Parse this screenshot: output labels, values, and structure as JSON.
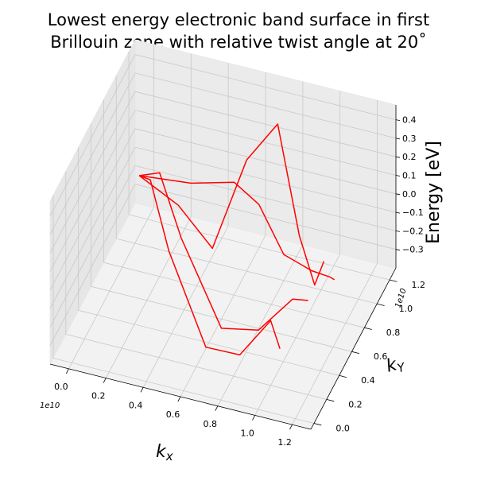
{
  "chart_data": {
    "type": "surface-3d-wireframe",
    "title_lines": [
      "Lowest energy electronic band surface in first",
      "Brillouin zone with relative twist angle at 20˚"
    ],
    "xlabel": "k_x",
    "ylabel": "k_Y",
    "zlabel": "Energy [eV]",
    "x_multiplier": "1e10",
    "y_multiplier": "1e10",
    "x_ticks": [
      "0.0",
      "0.2",
      "0.4",
      "0.6",
      "0.8",
      "1.0",
      "1.2"
    ],
    "y_ticks": [
      "0.0",
      "0.2",
      "0.4",
      "0.6",
      "0.8",
      "1.0",
      "1.2"
    ],
    "z_ticks": [
      "−0.3",
      "−0.2",
      "−0.1",
      "0.0",
      "0.1",
      "0.2",
      "0.3",
      "0.4"
    ],
    "x_range": [
      -0.1,
      1.3
    ],
    "y_range": [
      -0.05,
      1.3
    ],
    "z_range": [
      -0.4,
      0.48
    ],
    "series": [
      {
        "color": "#ff0000",
        "points": [
          [
            0.0,
            1.07,
            -0.08
          ],
          [
            0.1,
            0.95,
            0.0
          ],
          [
            0.25,
            0.8,
            -0.25
          ],
          [
            0.55,
            0.5,
            -0.5
          ],
          [
            0.8,
            0.3,
            -0.35
          ],
          [
            1.0,
            0.2,
            -0.05
          ],
          [
            1.1,
            0.05,
            -0.08
          ]
        ]
      },
      {
        "color": "#ff0000",
        "points": [
          [
            0.0,
            1.07,
            -0.08
          ],
          [
            0.15,
            0.95,
            0.05
          ],
          [
            0.3,
            0.85,
            -0.2
          ],
          [
            0.6,
            0.6,
            -0.45
          ],
          [
            0.85,
            0.45,
            -0.3
          ],
          [
            1.05,
            0.4,
            -0.05
          ],
          [
            1.15,
            0.35,
            0.0
          ]
        ]
      },
      {
        "color": "#ff0000",
        "points": [
          [
            0.0,
            1.07,
            -0.08
          ],
          [
            0.25,
            0.95,
            -0.1
          ],
          [
            0.45,
            0.9,
            -0.25
          ],
          [
            0.6,
            1.0,
            0.2
          ],
          [
            0.75,
            1.05,
            0.4
          ],
          [
            0.9,
            0.95,
            -0.1
          ],
          [
            1.05,
            0.75,
            -0.2
          ],
          [
            1.15,
            0.6,
            0.05
          ]
        ]
      },
      {
        "color": "#ff0000",
        "points": [
          [
            0.0,
            1.07,
            -0.08
          ],
          [
            0.3,
            1.0,
            0.0
          ],
          [
            0.55,
            0.95,
            0.1
          ],
          [
            0.7,
            0.9,
            0.05
          ],
          [
            0.85,
            0.85,
            -0.15
          ],
          [
            1.0,
            0.85,
            -0.2
          ],
          [
            1.15,
            0.7,
            -0.1
          ],
          [
            1.2,
            0.62,
            -0.05
          ]
        ]
      }
    ]
  }
}
